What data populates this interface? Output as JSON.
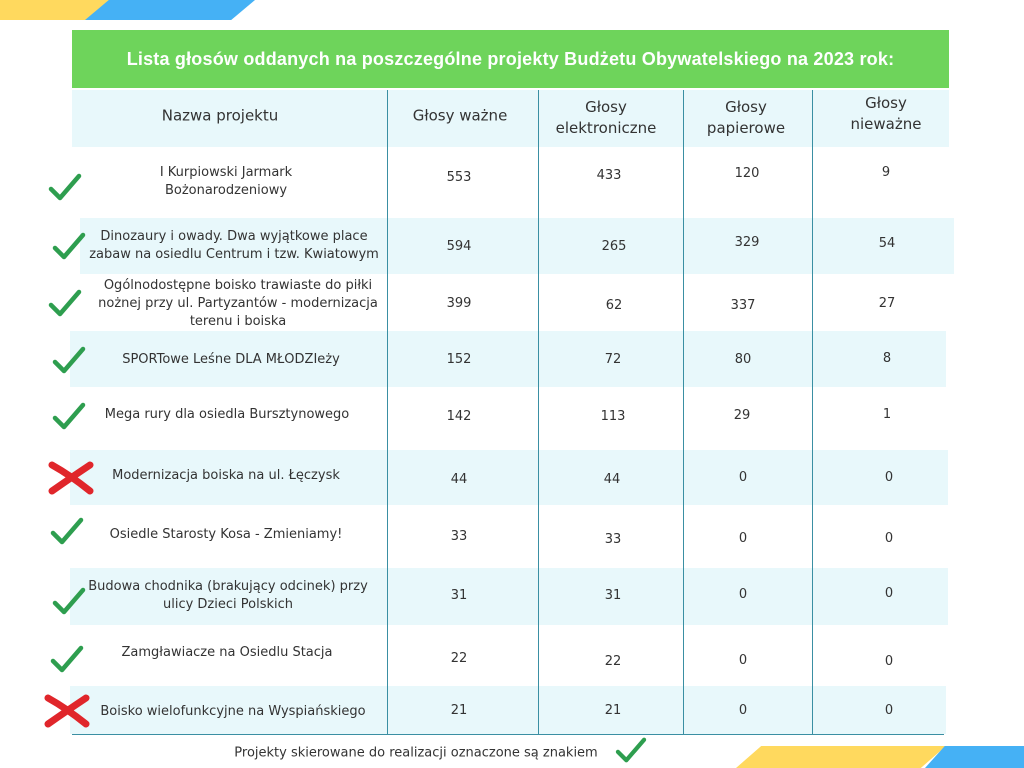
{
  "title": "Lista głosów oddanych na poszczególne projekty Budżetu Obywatelskiego na 2023 rok:",
  "headers": {
    "name": "Nazwa projektu",
    "valid": "Głosy ważne",
    "electronic": "Głosy elektroniczne",
    "paper": "Głosy papierowe",
    "invalid": "Głosy nieważne"
  },
  "rows": [
    {
      "status": "accepted",
      "name": "I Kurpiowski Jarmark Bożonarodzeniowy",
      "valid": "553",
      "electronic": "433",
      "paper": "120",
      "invalid": "9"
    },
    {
      "status": "accepted",
      "name": "Dinozaury i owady. Dwa wyjątkowe place zabaw na osiedlu Centrum i tzw. Kwiatowym",
      "valid": "594",
      "electronic": "265",
      "paper": "329",
      "invalid": "54"
    },
    {
      "status": "accepted",
      "name": "Ogólnodostępne boisko trawiaste do piłki nożnej przy ul. Partyzantów - modernizacja terenu i boiska",
      "valid": "399",
      "electronic": "62",
      "paper": "337",
      "invalid": "27"
    },
    {
      "status": "accepted",
      "name": "SPORTowe Leśne DLA MŁODZIeży",
      "valid": "152",
      "electronic": "72",
      "paper": "80",
      "invalid": "8"
    },
    {
      "status": "accepted",
      "name": "Mega rury dla osiedla Bursztynowego",
      "valid": "142",
      "electronic": "113",
      "paper": "29",
      "invalid": "1"
    },
    {
      "status": "rejected",
      "name": "Modernizacja boiska na ul. Łęczysk",
      "valid": "44",
      "electronic": "44",
      "paper": "0",
      "invalid": "0"
    },
    {
      "status": "accepted",
      "name": "Osiedle Starosty Kosa - Zmieniamy!",
      "valid": "33",
      "electronic": "33",
      "paper": "0",
      "invalid": "0"
    },
    {
      "status": "accepted",
      "name": "Budowa chodnika (brakujący odcinek) przy ulicy Dzieci Polskich",
      "valid": "31",
      "electronic": "31",
      "paper": "0",
      "invalid": "0"
    },
    {
      "status": "accepted",
      "name": "Zamgławiacze na Osiedlu Stacja",
      "valid": "22",
      "electronic": "22",
      "paper": "0",
      "invalid": "0"
    },
    {
      "status": "rejected",
      "name": "Boisko wielofunkcyjne na Wyspiańskiego",
      "valid": "21",
      "electronic": "21",
      "paper": "0",
      "invalid": "0"
    }
  ],
  "footer": "Projekty skierowane do realizacji oznaczone są znakiem",
  "colors": {
    "title_bg": "#6ed45b",
    "band_bg": "#e8f8fb",
    "accepted_mark": "#2e9e4f",
    "rejected_mark": "#e0262b",
    "stripe_yellow": "#ffd95e",
    "stripe_blue": "#45b1f5"
  },
  "icons": {
    "accepted": "check-icon",
    "rejected": "cross-icon"
  }
}
